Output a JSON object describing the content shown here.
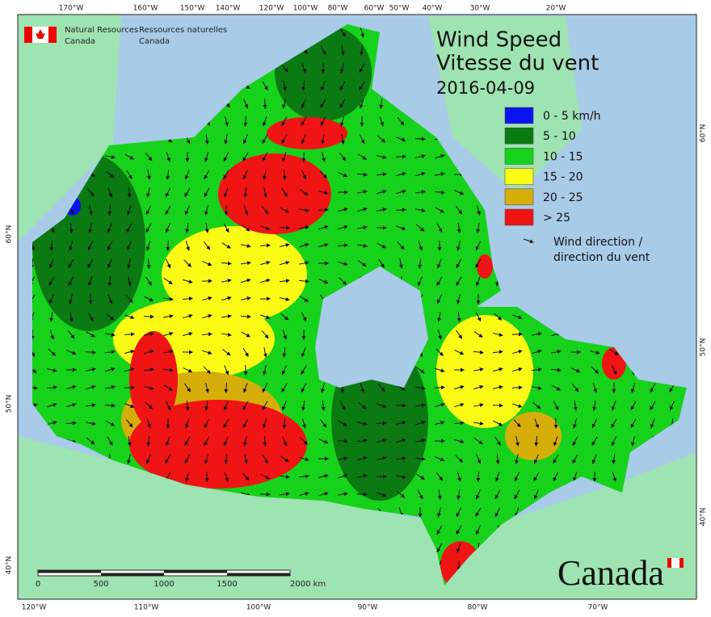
{
  "header": {
    "agency_en": [
      "Natural Resources",
      "Canada"
    ],
    "agency_fr": [
      "Ressources naturelles",
      "Canada"
    ]
  },
  "title": {
    "line1": "Wind Speed",
    "line2": "Vitesse du vent",
    "date": "2016-04-09"
  },
  "legend": {
    "items": [
      {
        "label": "0 - 5 km/h",
        "color": "#0a14f0"
      },
      {
        "label": "5 - 10",
        "color": "#0b7a12"
      },
      {
        "label": "10 - 15",
        "color": "#16d21a"
      },
      {
        "label": "15 - 20",
        "color": "#fafa14"
      },
      {
        "label": "20 - 25",
        "color": "#d6ae0a"
      },
      {
        "label": "> 25",
        "color": "#f01414"
      }
    ],
    "arrow": [
      "Wind direction /",
      "direction du vent"
    ]
  },
  "graticule": {
    "top": [
      "170°W",
      "160°W",
      "150°W",
      "140°W",
      "120°W",
      "100°W",
      "80°W",
      "60°W",
      "50°W",
      "40°W",
      "30°W",
      "20°W"
    ],
    "bottom": [
      "120°W",
      "110°W",
      "100°W",
      "90°W",
      "80°W",
      "70°W"
    ],
    "left": [
      "60°N",
      "50°N",
      "40°N"
    ],
    "right": [
      "60°N",
      "50°N",
      "40°N"
    ]
  },
  "scale_bar": [
    "0",
    "500",
    "1000",
    "1500",
    "2000 km"
  ],
  "wordmark": "Canada"
}
